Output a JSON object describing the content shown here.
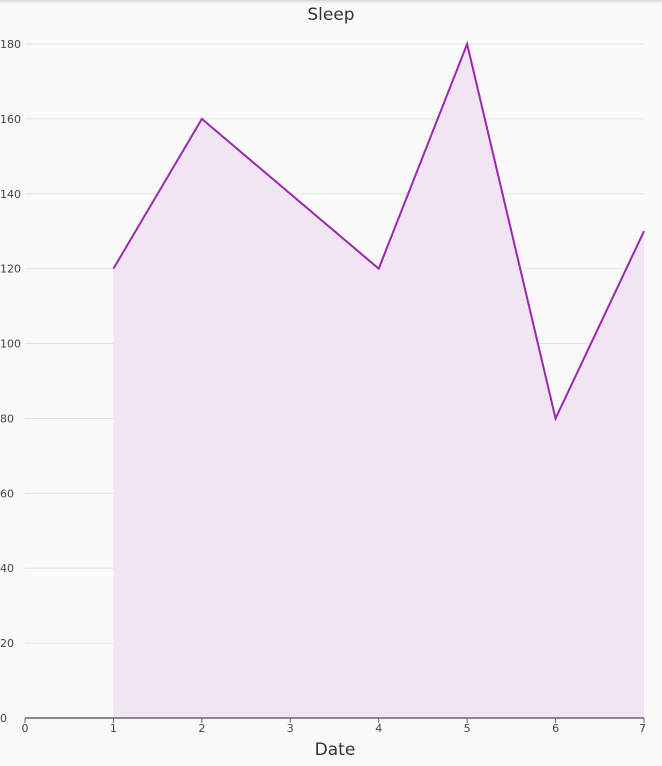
{
  "chart_data": {
    "type": "area",
    "title": "Sleep",
    "xlabel": "Date",
    "ylabel": "",
    "xlim": [
      0,
      7
    ],
    "ylim": [
      0,
      180
    ],
    "x_ticks": [
      "0",
      "1",
      "2",
      "3",
      "4",
      "5",
      "6",
      "7"
    ],
    "y_ticks": [
      "0",
      "20",
      "40",
      "60",
      "80",
      "100",
      "120",
      "140",
      "160",
      "180"
    ],
    "grid": true,
    "legend": "none",
    "series": [
      {
        "x": [
          1,
          2,
          4,
          5,
          6,
          7
        ],
        "y": [
          120,
          160,
          120,
          180,
          80,
          130
        ],
        "line_color": "#9c27b0",
        "fill_color": "#f1e5f4"
      }
    ]
  }
}
